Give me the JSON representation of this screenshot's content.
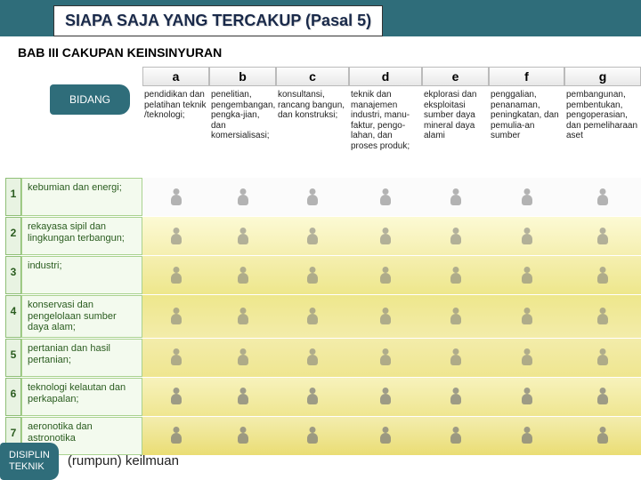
{
  "title": "SIAPA SAJA YANG TERCAKUP (Pasal 5)",
  "subtitle": "BAB III   CAKUPAN KEINSINYURAN",
  "bidang_label": "BIDANG",
  "columns": [
    {
      "h": "a",
      "d": "pendidikan dan pelatihan teknik /teknologi;"
    },
    {
      "h": "b",
      "d": "penelitian, pengembangan, pengka-jian, dan komersialisasi;"
    },
    {
      "h": "c",
      "d": "konsultansi, rancang bangun, dan konstruksi;"
    },
    {
      "h": "d",
      "d": "teknik dan manajemen industri, manu-faktur, pengo-lahan, dan proses produk;"
    },
    {
      "h": "e",
      "d": "ekplorasi dan eksploitasi sumber daya mineral daya alami"
    },
    {
      "h": "f",
      "d": "penggalian, penanaman, peningkatan, dan pemulia-an sumber"
    },
    {
      "h": "g",
      "d": "pembangunan, pembentukan, pengoperasian, dan pemeliharaan aset"
    }
  ],
  "rows": [
    {
      "n": "1",
      "label": "kebumian dan energi;"
    },
    {
      "n": "2",
      "label": "rekayasa sipil dan lingkungan terbangun;"
    },
    {
      "n": "3",
      "label": "industri;"
    },
    {
      "n": "4",
      "label": "konservasi dan pengelolaan sumber daya alam;"
    },
    {
      "n": "5",
      "label": "pertanian dan hasil pertanian;"
    },
    {
      "n": "6",
      "label": "teknologi kelautan dan perkapalan;"
    },
    {
      "n": "7",
      "label": "aeronotika dan astronotika"
    }
  ],
  "footer_tab": "DISIPLIN\nTEKNIK",
  "footer_text": "(rumpun) keilmuan",
  "colors": {
    "teal": "#2f6d7a",
    "row_num_bg": "#e8f3e2",
    "row_label_bg": "#f3faee"
  }
}
